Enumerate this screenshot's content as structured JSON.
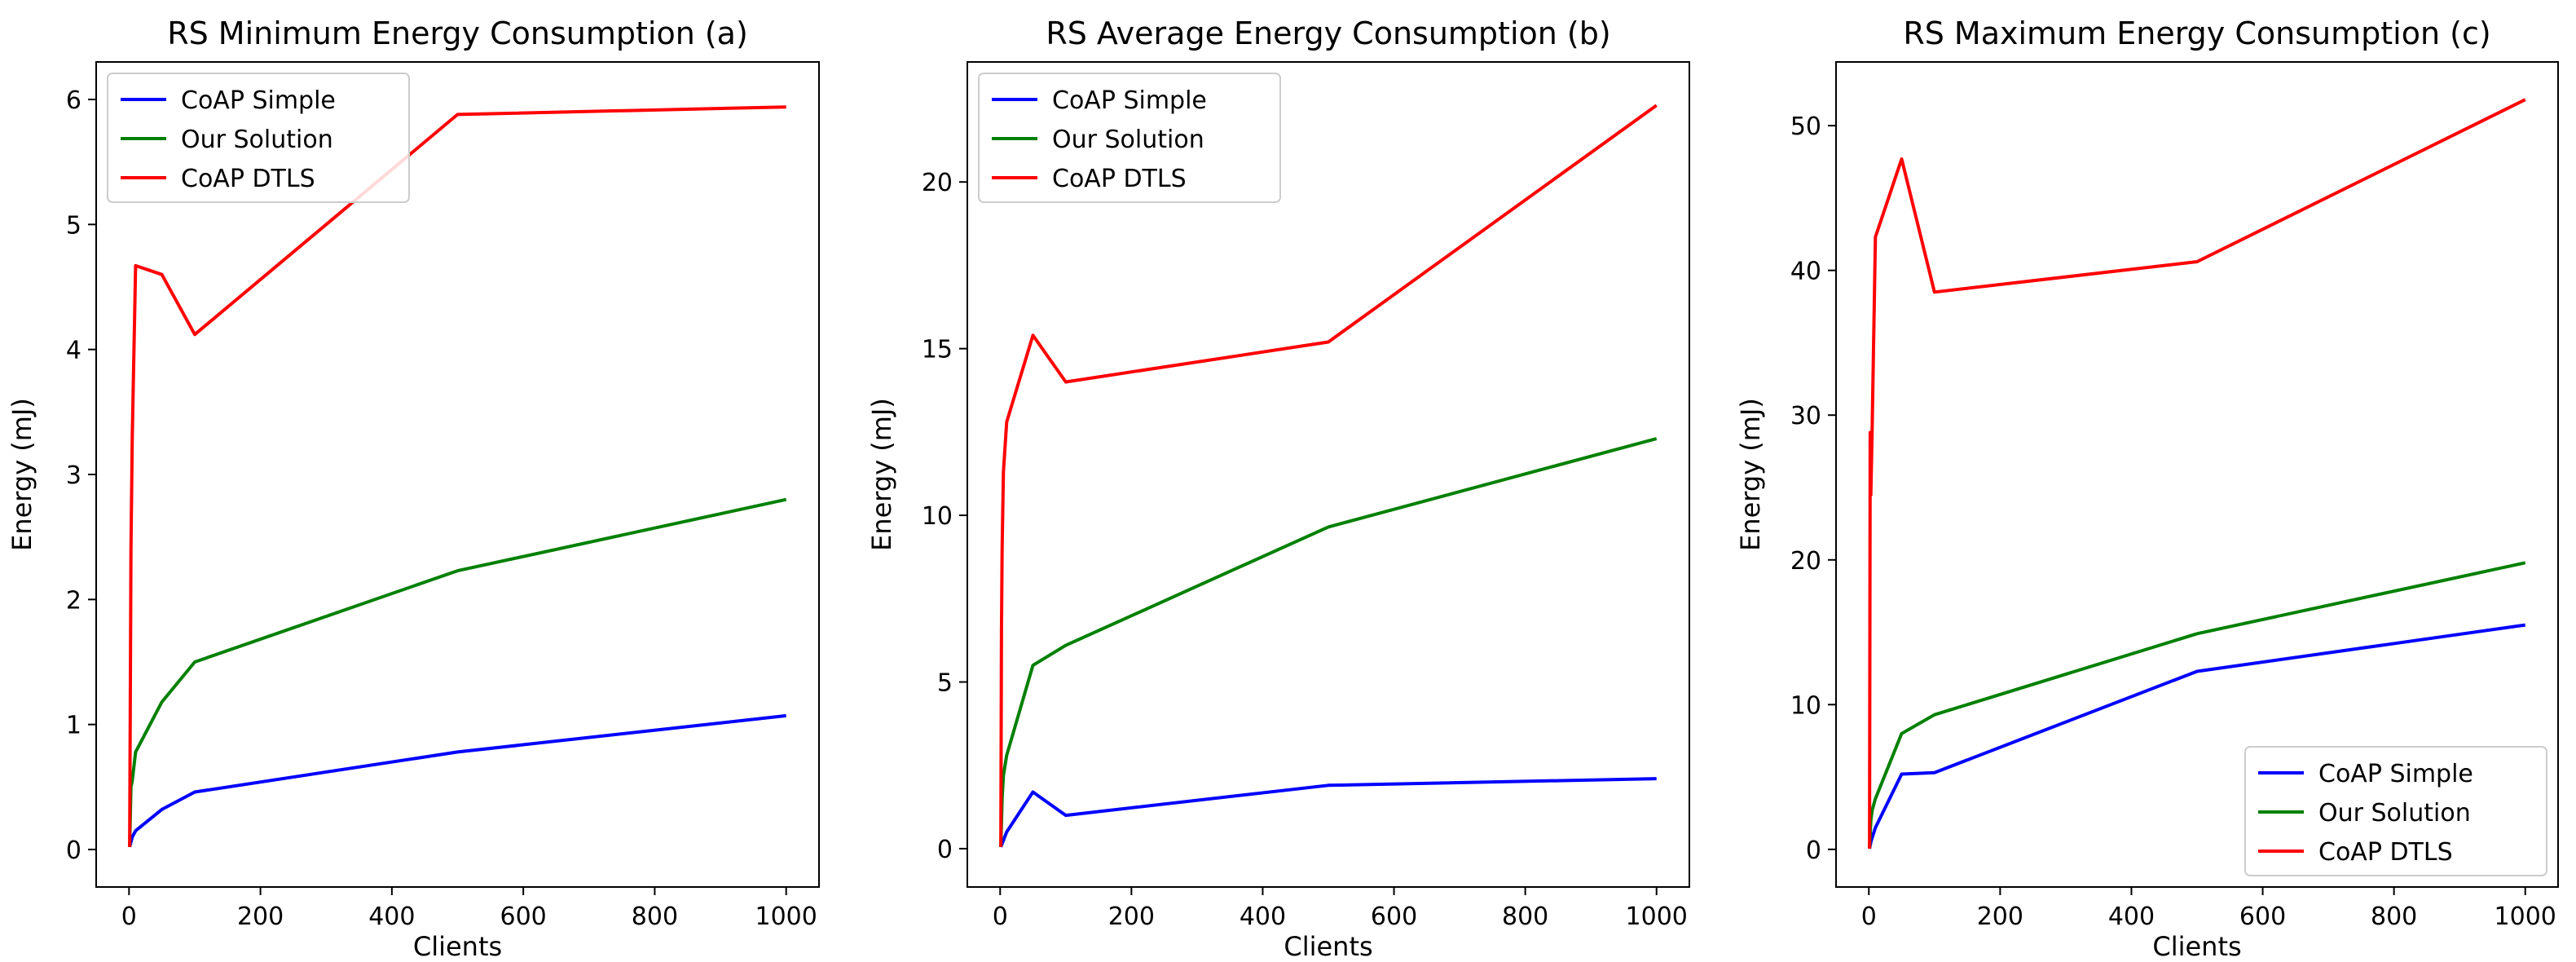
{
  "charts": [
    {
      "type": "line",
      "title": "RS Minimum Energy Consumption (a)",
      "xlabel": "Clients",
      "ylabel": "Energy (mJ)",
      "xlim": [
        -50,
        1050
      ],
      "ylim": [
        -0.3,
        6.3
      ],
      "xticks": [
        0,
        200,
        400,
        600,
        800,
        1000
      ],
      "yticks": [
        0,
        1,
        2,
        3,
        4,
        5,
        6
      ],
      "legend": "top-left",
      "series": [
        {
          "name": "CoAP Simple",
          "color": "#0000ff",
          "x": [
            1,
            3,
            5,
            10,
            50,
            100,
            500,
            1000
          ],
          "y": [
            0.02,
            0.06,
            0.1,
            0.15,
            0.32,
            0.46,
            0.78,
            1.07
          ]
        },
        {
          "name": "Our Solution",
          "color": "#008000",
          "x": [
            1,
            3,
            5,
            10,
            50,
            100,
            500,
            1000
          ],
          "y": [
            0.02,
            0.5,
            0.55,
            0.78,
            1.18,
            1.5,
            2.23,
            2.8
          ]
        },
        {
          "name": "CoAP DTLS",
          "color": "#ff0000",
          "x": [
            1,
            2,
            3,
            5,
            10,
            50,
            100,
            500,
            1000
          ],
          "y": [
            0.02,
            1.2,
            2.4,
            3.3,
            4.67,
            4.6,
            4.12,
            5.88,
            5.94
          ]
        }
      ]
    },
    {
      "type": "line",
      "title": "RS Average Energy Consumption (b)",
      "xlabel": "Clients",
      "ylabel": "Energy (mJ)",
      "xlim": [
        -50,
        1050
      ],
      "ylim": [
        -1.15,
        23.6
      ],
      "xticks": [
        0,
        200,
        400,
        600,
        800,
        1000
      ],
      "yticks": [
        0,
        5,
        10,
        15,
        20
      ],
      "legend": "top-left",
      "series": [
        {
          "name": "CoAP Simple",
          "color": "#0000ff",
          "x": [
            1,
            3,
            5,
            10,
            50,
            100,
            500,
            1000
          ],
          "y": [
            0.05,
            0.15,
            0.25,
            0.5,
            1.7,
            1.0,
            1.9,
            2.1
          ]
        },
        {
          "name": "Our Solution",
          "color": "#008000",
          "x": [
            1,
            3,
            5,
            10,
            50,
            100,
            500,
            1000
          ],
          "y": [
            0.05,
            1.5,
            2.2,
            2.8,
            5.5,
            6.1,
            9.65,
            12.3
          ]
        },
        {
          "name": "CoAP DTLS",
          "color": "#ff0000",
          "x": [
            1,
            2,
            3,
            5,
            10,
            50,
            100,
            500,
            1000
          ],
          "y": [
            0.05,
            6.5,
            9.0,
            11.3,
            12.8,
            15.4,
            14.0,
            15.2,
            22.3
          ]
        }
      ]
    },
    {
      "type": "line",
      "title": "RS Maximum Energy Consumption (c)",
      "xlabel": "Clients",
      "ylabel": "Energy (mJ)",
      "xlim": [
        -50,
        1050
      ],
      "ylim": [
        -2.6,
        54.4
      ],
      "xticks": [
        0,
        200,
        400,
        600,
        800,
        1000
      ],
      "yticks": [
        0,
        10,
        20,
        30,
        40,
        50
      ],
      "legend": "bottom-right",
      "series": [
        {
          "name": "CoAP Simple",
          "color": "#0000ff",
          "x": [
            1,
            3,
            5,
            10,
            50,
            100,
            500,
            1000
          ],
          "y": [
            0.05,
            0.5,
            0.8,
            1.5,
            5.2,
            5.3,
            12.3,
            15.5
          ]
        },
        {
          "name": "Our Solution",
          "color": "#008000",
          "x": [
            1,
            3,
            5,
            10,
            50,
            100,
            500,
            1000
          ],
          "y": [
            0.05,
            2.0,
            2.7,
            3.5,
            8.0,
            9.3,
            14.9,
            19.8
          ]
        },
        {
          "name": "CoAP DTLS",
          "color": "#ff0000",
          "x": [
            1,
            2,
            3,
            5,
            10,
            50,
            100,
            500,
            1000
          ],
          "y": [
            0.05,
            28.8,
            24.5,
            29.0,
            42.3,
            47.7,
            38.5,
            40.6,
            51.8
          ]
        }
      ]
    }
  ]
}
